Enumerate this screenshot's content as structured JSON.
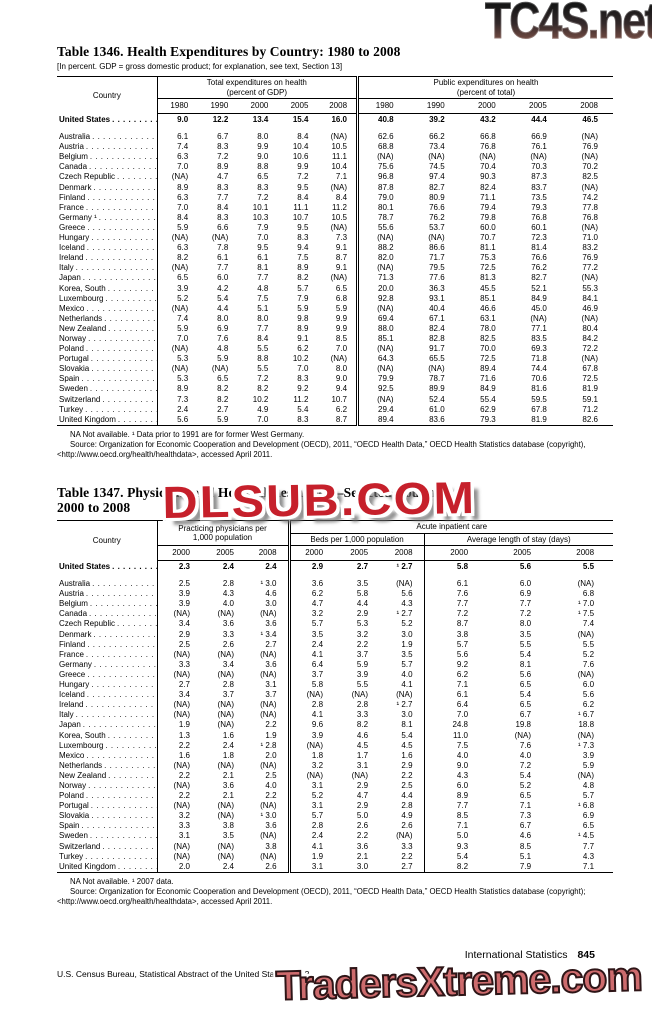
{
  "watermarks": {
    "top": "TC4S.net",
    "middle": "DLSUB.COM",
    "bottom": "TradersXtreme.com"
  },
  "colors": {
    "watermark_mid_red": "#c6202b",
    "watermark_bottom_fill": "#cd6b6d",
    "watermark_bottom_outline": "#2e1517",
    "watermark_top_dark": "#161616",
    "watermark_top_rust": "#8a584c",
    "text": "#000000"
  },
  "t1346": {
    "title": "Table 1346. Health Expenditures by Country: 1980 to 2008",
    "note": "[In percent. GDP = gross domestic product; for explanation, see text, Section 13]",
    "country_label": "Country",
    "g1a": "Total expenditures on health",
    "g1b": "(percent of GDP)",
    "g2a": "Public expenditures on health",
    "g2b": "(percent of total)",
    "years": [
      "1980",
      "1990",
      "2000",
      "2005",
      "2008",
      "1980",
      "1990",
      "2000",
      "2005",
      "2008"
    ],
    "us": {
      "name": "United States",
      "v": [
        "9.0",
        "12.2",
        "13.4",
        "15.4",
        "16.0",
        "40.8",
        "39.2",
        "43.2",
        "44.4",
        "46.5"
      ]
    },
    "rows": [
      {
        "name": "Australia",
        "v": [
          "6.1",
          "6.7",
          "8.0",
          "8.4",
          "(NA)",
          "62.6",
          "66.2",
          "66.8",
          "66.9",
          "(NA)"
        ]
      },
      {
        "name": "Austria",
        "v": [
          "7.4",
          "8.3",
          "9.9",
          "10.4",
          "10.5",
          "68.8",
          "73.4",
          "76.8",
          "76.1",
          "76.9"
        ]
      },
      {
        "name": "Belgium",
        "v": [
          "6.3",
          "7.2",
          "9.0",
          "10.6",
          "11.1",
          "(NA)",
          "(NA)",
          "(NA)",
          "(NA)",
          "(NA)"
        ]
      },
      {
        "name": "Canada",
        "v": [
          "7.0",
          "8.9",
          "8.8",
          "9.9",
          "10.4",
          "75.6",
          "74.5",
          "70.4",
          "70.3",
          "70.2"
        ]
      },
      {
        "name": "Czech Republic",
        "v": [
          "(NA)",
          "4.7",
          "6.5",
          "7.2",
          "7.1",
          "96.8",
          "97.4",
          "90.3",
          "87.3",
          "82.5"
        ]
      },
      {
        "name": "Denmark",
        "v": [
          "8.9",
          "8.3",
          "8.3",
          "9.5",
          "(NA)",
          "87.8",
          "82.7",
          "82.4",
          "83.7",
          "(NA)"
        ]
      },
      {
        "name": "Finland",
        "v": [
          "6.3",
          "7.7",
          "7.2",
          "8.4",
          "8.4",
          "79.0",
          "80.9",
          "71.1",
          "73.5",
          "74.2"
        ]
      },
      {
        "name": "France",
        "v": [
          "7.0",
          "8.4",
          "10.1",
          "11.1",
          "11.2",
          "80.1",
          "76.6",
          "79.4",
          "79.3",
          "77.8"
        ]
      },
      {
        "name": "Germany ¹",
        "v": [
          "8.4",
          "8.3",
          "10.3",
          "10.7",
          "10.5",
          "78.7",
          "76.2",
          "79.8",
          "76.8",
          "76.8"
        ]
      },
      {
        "name": "Greece",
        "v": [
          "5.9",
          "6.6",
          "7.9",
          "9.5",
          "(NA)",
          "55.6",
          "53.7",
          "60.0",
          "60.1",
          "(NA)"
        ]
      },
      {
        "name": "Hungary",
        "v": [
          "(NA)",
          "(NA)",
          "7.0",
          "8.3",
          "7.3",
          "(NA)",
          "(NA)",
          "70.7",
          "72.3",
          "71.0"
        ]
      },
      {
        "name": "Iceland",
        "v": [
          "6.3",
          "7.8",
          "9.5",
          "9.4",
          "9.1",
          "88.2",
          "86.6",
          "81.1",
          "81.4",
          "83.2"
        ]
      },
      {
        "name": "Ireland",
        "v": [
          "8.2",
          "6.1",
          "6.1",
          "7.5",
          "8.7",
          "82.0",
          "71.7",
          "75.3",
          "76.6",
          "76.9"
        ]
      },
      {
        "name": "Italy",
        "v": [
          "(NA)",
          "7.7",
          "8.1",
          "8.9",
          "9.1",
          "(NA)",
          "79.5",
          "72.5",
          "76.2",
          "77.2"
        ]
      },
      {
        "name": "Japan",
        "v": [
          "6.5",
          "6.0",
          "7.7",
          "8.2",
          "(NA)",
          "71.3",
          "77.6",
          "81.3",
          "82.7",
          "(NA)"
        ]
      },
      {
        "name": "Korea, South",
        "v": [
          "3.9",
          "4.2",
          "4.8",
          "5.7",
          "6.5",
          "20.0",
          "36.3",
          "45.5",
          "52.1",
          "55.3"
        ]
      },
      {
        "name": "Luxembourg",
        "v": [
          "5.2",
          "5.4",
          "7.5",
          "7.9",
          "6.8",
          "92.8",
          "93.1",
          "85.1",
          "84.9",
          "84.1"
        ]
      },
      {
        "name": "Mexico",
        "v": [
          "(NA)",
          "4.4",
          "5.1",
          "5.9",
          "5.9",
          "(NA)",
          "40.4",
          "46.6",
          "45.0",
          "46.9"
        ]
      },
      {
        "name": "Netherlands",
        "v": [
          "7.4",
          "8.0",
          "8.0",
          "9.8",
          "9.9",
          "69.4",
          "67.1",
          "63.1",
          "(NA)",
          "(NA)"
        ]
      },
      {
        "name": "New Zealand",
        "v": [
          "5.9",
          "6.9",
          "7.7",
          "8.9",
          "9.9",
          "88.0",
          "82.4",
          "78.0",
          "77.1",
          "80.4"
        ]
      },
      {
        "name": "Norway",
        "v": [
          "7.0",
          "7.6",
          "8.4",
          "9.1",
          "8.5",
          "85.1",
          "82.8",
          "82.5",
          "83.5",
          "84.2"
        ]
      },
      {
        "name": "Poland",
        "v": [
          "(NA)",
          "4.8",
          "5.5",
          "6.2",
          "7.0",
          "(NA)",
          "91.7",
          "70.0",
          "69.3",
          "72.2"
        ]
      },
      {
        "name": "Portugal",
        "v": [
          "5.3",
          "5.9",
          "8.8",
          "10.2",
          "(NA)",
          "64.3",
          "65.5",
          "72.5",
          "71.8",
          "(NA)"
        ]
      },
      {
        "name": "Slovakia",
        "v": [
          "(NA)",
          "(NA)",
          "5.5",
          "7.0",
          "8.0",
          "(NA)",
          "(NA)",
          "89.4",
          "74.4",
          "67.8"
        ]
      },
      {
        "name": "Spain",
        "v": [
          "5.3",
          "6.5",
          "7.2",
          "8.3",
          "9.0",
          "79.9",
          "78.7",
          "71.6",
          "70.6",
          "72.5"
        ]
      },
      {
        "name": "Sweden",
        "v": [
          "8.9",
          "8.2",
          "8.2",
          "9.2",
          "9.4",
          "92.5",
          "89.9",
          "84.9",
          "81.6",
          "81.9"
        ]
      },
      {
        "name": "Switzerland",
        "v": [
          "7.3",
          "8.2",
          "10.2",
          "11.2",
          "10.7",
          "(NA)",
          "52.4",
          "55.4",
          "59.5",
          "59.1"
        ]
      },
      {
        "name": "Turkey",
        "v": [
          "2.4",
          "2.7",
          "4.9",
          "5.4",
          "6.2",
          "29.4",
          "61.0",
          "62.9",
          "67.8",
          "71.2"
        ]
      },
      {
        "name": "United Kingdom",
        "v": [
          "5.6",
          "5.9",
          "7.0",
          "8.3",
          "8.7",
          "89.4",
          "83.6",
          "79.3",
          "81.9",
          "82.6"
        ]
      }
    ],
    "fn1": "NA Not available. ¹ Data prior to 1991 are for former West Germany.",
    "fn2": "Source: Organization for Economic Cooperation and Development (OECD), 2011, “OECD Health Data,” OECD Health Statistics database (copyright), <http://www.oecd.org/health/healthdata>, accessed April 2011."
  },
  "t1347": {
    "title_line1": "Table 1347. Physicians and Hospital Resources—Selected Countries:",
    "title_line2": "2000 to 2008",
    "country_label": "Country",
    "g1a": "Practicing physicians per",
    "g1b": "1,000 population",
    "g2": "Acute inpatient care",
    "sub1": "Beds per 1,000 population",
    "sub2": "Average length of stay (days)",
    "years": [
      "2000",
      "2005",
      "2008",
      "2000",
      "2005",
      "2008",
      "2000",
      "2005",
      "2008"
    ],
    "us": {
      "name": "United States",
      "v": [
        "2.3",
        "2.4",
        "2.4",
        "2.9",
        "2.7",
        "¹ 2.7",
        "5.8",
        "5.6",
        "5.5"
      ]
    },
    "rows": [
      {
        "name": "Australia",
        "v": [
          "2.5",
          "2.8",
          "¹ 3.0",
          "3.6",
          "3.5",
          "(NA)",
          "6.1",
          "6.0",
          "(NA)"
        ]
      },
      {
        "name": "Austria",
        "v": [
          "3.9",
          "4.3",
          "4.6",
          "6.2",
          "5.8",
          "5.6",
          "7.6",
          "6.9",
          "6.8"
        ]
      },
      {
        "name": "Belgium",
        "v": [
          "3.9",
          "4.0",
          "3.0",
          "4.7",
          "4.4",
          "4.3",
          "7.7",
          "7.7",
          "¹ 7.0"
        ]
      },
      {
        "name": "Canada",
        "v": [
          "(NA)",
          "(NA)",
          "(NA)",
          "3.2",
          "2.9",
          "¹ 2.7",
          "7.2",
          "7.2",
          "¹ 7.5"
        ]
      },
      {
        "name": "Czech Republic",
        "v": [
          "3.4",
          "3.6",
          "3.6",
          "5.7",
          "5.3",
          "5.2",
          "8.7",
          "8.0",
          "7.4"
        ]
      },
      {
        "name": "Denmark",
        "v": [
          "2.9",
          "3.3",
          "¹ 3.4",
          "3.5",
          "3.2",
          "3.0",
          "3.8",
          "3.5",
          "(NA)"
        ]
      },
      {
        "name": "Finland",
        "v": [
          "2.5",
          "2.6",
          "2.7",
          "2.4",
          "2.2",
          "1.9",
          "5.7",
          "5.5",
          "5.5"
        ]
      },
      {
        "name": "France",
        "v": [
          "(NA)",
          "(NA)",
          "(NA)",
          "4.1",
          "3.7",
          "3.5",
          "5.6",
          "5.4",
          "5.2"
        ]
      },
      {
        "name": "Germany",
        "v": [
          "3.3",
          "3.4",
          "3.6",
          "6.4",
          "5.9",
          "5.7",
          "9.2",
          "8.1",
          "7.6"
        ]
      },
      {
        "name": "Greece",
        "v": [
          "(NA)",
          "(NA)",
          "(NA)",
          "3.7",
          "3.9",
          "4.0",
          "6.2",
          "5.6",
          "(NA)"
        ]
      },
      {
        "name": "Hungary",
        "v": [
          "2.7",
          "2.8",
          "3.1",
          "5.8",
          "5.5",
          "4.1",
          "7.1",
          "6.5",
          "6.0"
        ]
      },
      {
        "name": "Iceland",
        "v": [
          "3.4",
          "3.7",
          "3.7",
          "(NA)",
          "(NA)",
          "(NA)",
          "6.1",
          "5.4",
          "5.6"
        ]
      },
      {
        "name": "Ireland",
        "v": [
          "(NA)",
          "(NA)",
          "(NA)",
          "2.8",
          "2.8",
          "¹ 2.7",
          "6.4",
          "6.5",
          "6.2"
        ]
      },
      {
        "name": "Italy",
        "v": [
          "(NA)",
          "(NA)",
          "(NA)",
          "4.1",
          "3.3",
          "3.0",
          "7.0",
          "6.7",
          "¹ 6.7"
        ]
      },
      {
        "name": "Japan",
        "v": [
          "1.9",
          "(NA)",
          "2.2",
          "9.6",
          "8.2",
          "8.1",
          "24.8",
          "19.8",
          "18.8"
        ]
      },
      {
        "name": "Korea, South",
        "v": [
          "1.3",
          "1.6",
          "1.9",
          "3.9",
          "4.6",
          "5.4",
          "11.0",
          "(NA)",
          "(NA)"
        ]
      },
      {
        "name": "Luxembourg",
        "v": [
          "2.2",
          "2.4",
          "¹ 2.8",
          "(NA)",
          "4.5",
          "4.5",
          "7.5",
          "7.6",
          "¹ 7.3"
        ]
      },
      {
        "name": "Mexico",
        "v": [
          "1.6",
          "1.8",
          "2.0",
          "1.8",
          "1.7",
          "1.6",
          "4.0",
          "4.0",
          "3.9"
        ]
      },
      {
        "name": "Netherlands",
        "v": [
          "(NA)",
          "(NA)",
          "(NA)",
          "3.2",
          "3.1",
          "2.9",
          "9.0",
          "7.2",
          "5.9"
        ]
      },
      {
        "name": "New Zealand",
        "v": [
          "2.2",
          "2.1",
          "2.5",
          "(NA)",
          "(NA)",
          "2.2",
          "4.3",
          "5.4",
          "(NA)"
        ]
      },
      {
        "name": "Norway",
        "v": [
          "(NA)",
          "3.6",
          "4.0",
          "3.1",
          "2.9",
          "2.5",
          "6.0",
          "5.2",
          "4.8"
        ]
      },
      {
        "name": "Poland",
        "v": [
          "2.2",
          "2.1",
          "2.2",
          "5.2",
          "4.7",
          "4.4",
          "8.9",
          "6.5",
          "5.7"
        ]
      },
      {
        "name": "Portugal",
        "v": [
          "(NA)",
          "(NA)",
          "(NA)",
          "3.1",
          "2.9",
          "2.8",
          "7.7",
          "7.1",
          "¹ 6.8"
        ]
      },
      {
        "name": "Slovakia",
        "v": [
          "3.2",
          "(NA)",
          "¹ 3.0",
          "5.7",
          "5.0",
          "4.9",
          "8.5",
          "7.3",
          "6.9"
        ]
      },
      {
        "name": "Spain",
        "v": [
          "3.3",
          "3.8",
          "3.6",
          "2.8",
          "2.6",
          "2.6",
          "7.1",
          "6.7",
          "6.5"
        ]
      },
      {
        "name": "Sweden",
        "v": [
          "3.1",
          "3.5",
          "(NA)",
          "2.4",
          "2.2",
          "(NA)",
          "5.0",
          "4.6",
          "¹ 4.5"
        ]
      },
      {
        "name": "Switzerland",
        "v": [
          "(NA)",
          "(NA)",
          "3.8",
          "4.1",
          "3.6",
          "3.3",
          "9.3",
          "8.5",
          "7.7"
        ]
      },
      {
        "name": "Turkey",
        "v": [
          "(NA)",
          "(NA)",
          "(NA)",
          "1.9",
          "2.1",
          "2.2",
          "5.4",
          "5.1",
          "4.3"
        ]
      },
      {
        "name": "United Kingdom",
        "v": [
          "2.0",
          "2.4",
          "2.6",
          "3.1",
          "3.0",
          "2.7",
          "8.2",
          "7.9",
          "7.1"
        ]
      }
    ],
    "fn1": "NA Not available. ¹ 2007 data.",
    "fn2": "Source: Organization for Economic Cooperation and Development (OECD), 2011, “OECD Health Data,” OECD Health Statistics database (copyright); <http://www.oecd.org/health/healthdata>, accessed April 2011."
  },
  "footer": {
    "section": "International Statistics",
    "page": "845",
    "source_line": "U.S. Census Bureau, Statistical Abstract of the United States: 2012"
  }
}
